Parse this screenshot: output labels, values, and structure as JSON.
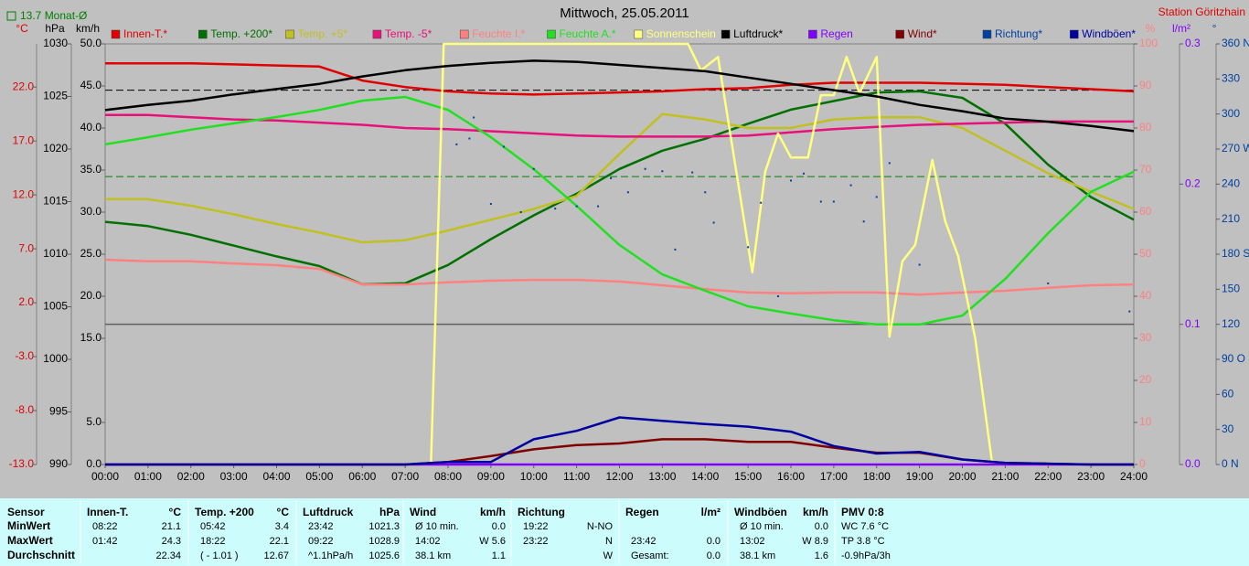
{
  "chart_data": {
    "type": "line",
    "title": "Mittwoch, 25.05.2011",
    "station": "Station Göritzhain",
    "month_avg_label": "13.7 Monat-Ø",
    "ref_lines": [
      {
        "value": 13.7,
        "axis": 0,
        "color": "#008000"
      },
      {
        "value": 1025.6,
        "axis": 1,
        "color": "#000000"
      }
    ],
    "xlim": [
      0,
      24
    ],
    "xticks": [
      {
        "value": 0,
        "label": "00:00"
      },
      {
        "value": 1,
        "label": "01:00"
      },
      {
        "value": 2,
        "label": "02:00"
      },
      {
        "value": 3,
        "label": "03:00"
      },
      {
        "value": 4,
        "label": "04:00"
      },
      {
        "value": 5,
        "label": "05:00"
      },
      {
        "value": 6,
        "label": "06:00"
      },
      {
        "value": 7,
        "label": "07:00"
      },
      {
        "value": 8,
        "label": "08:00"
      },
      {
        "value": 9,
        "label": "09:00"
      },
      {
        "value": 10,
        "label": "10:00"
      },
      {
        "value": 11,
        "label": "11:00"
      },
      {
        "value": 12,
        "label": "12:00"
      },
      {
        "value": 13,
        "label": "13:00"
      },
      {
        "value": 14,
        "label": "14:00"
      },
      {
        "value": 15,
        "label": "15:00"
      },
      {
        "value": 16,
        "label": "16:00"
      },
      {
        "value": 17,
        "label": "17:00"
      },
      {
        "value": 18,
        "label": "18:00"
      },
      {
        "value": 19,
        "label": "19:00"
      },
      {
        "value": 20,
        "label": "20:00"
      },
      {
        "value": 21,
        "label": "21:00"
      },
      {
        "value": 22,
        "label": "22:00"
      },
      {
        "value": 23,
        "label": "23:00"
      },
      {
        "value": 24,
        "label": "24:00"
      }
    ],
    "x": [
      0,
      1,
      2,
      3,
      4,
      5,
      6,
      7,
      8,
      9,
      10,
      11,
      12,
      13,
      14,
      15,
      16,
      17,
      18,
      19,
      20,
      21,
      22,
      23,
      24
    ],
    "axes": [
      {
        "label": "°C",
        "color": "#e00000",
        "lim": [
          -13,
          26
        ],
        "ticks": [
          {
            "value": 22,
            "label": "22.0"
          },
          {
            "value": 17,
            "label": "17.0"
          },
          {
            "value": 12,
            "label": "12.0"
          },
          {
            "value": 7,
            "label": "7.0"
          },
          {
            "value": 2,
            "label": "2.0"
          },
          {
            "value": -3,
            "label": "-3.0"
          },
          {
            "value": -8,
            "label": "-8.0"
          },
          {
            "value": -13,
            "label": "-13.0"
          }
        ]
      },
      {
        "label": "hPa",
        "color": "#000000",
        "lim": [
          990,
          1030
        ],
        "ticks": [
          1030,
          1025,
          1020,
          1015,
          1010,
          1005,
          1000,
          995,
          990
        ]
      },
      {
        "label": "km/h",
        "color": "#000000",
        "lim": [
          0,
          50
        ],
        "ticks": [
          {
            "value": 50,
            "label": "50.0"
          },
          {
            "value": 45,
            "label": "45.0"
          },
          {
            "value": 40,
            "label": "40.0"
          },
          {
            "value": 35,
            "label": "35.0"
          },
          {
            "value": 30,
            "label": "30.0"
          },
          {
            "value": 25,
            "label": "25.0"
          },
          {
            "value": 20,
            "label": "20.0"
          },
          {
            "value": 15,
            "label": "15.0"
          },
          {
            "value": 5,
            "label": "5.0"
          },
          {
            "value": 0,
            "label": "0.0"
          }
        ]
      },
      {
        "label": "%",
        "color": "#ff8080",
        "lim": [
          0,
          100
        ],
        "ticks": [
          100,
          90,
          80,
          70,
          60,
          50,
          40,
          30,
          20,
          10,
          0
        ]
      },
      {
        "label": "l/m²",
        "color": "#8000ff",
        "lim": [
          0,
          0.3
        ],
        "ticks": [
          0.3,
          0.2,
          0.1,
          {
            "value": 0,
            "label": "0.0"
          }
        ]
      },
      {
        "label": "°",
        "color": "#0040a0",
        "lim": [
          0,
          360
        ],
        "ticks": [
          {
            "value": 360,
            "label": "360 N"
          },
          330,
          300,
          {
            "value": 270,
            "label": "270 W"
          },
          240,
          210,
          {
            "value": 180,
            "label": "180 S"
          },
          150,
          120,
          {
            "value": 90,
            "label": "90 O"
          },
          60,
          30,
          {
            "value": 0,
            "label": "0 N"
          }
        ]
      }
    ],
    "series": [
      {
        "name": "Innen-T.*",
        "color": "#e00000",
        "axis": 0,
        "values": [
          24.2,
          24.2,
          24.2,
          24.1,
          24.0,
          23.9,
          22.6,
          22.0,
          21.6,
          21.4,
          21.3,
          21.4,
          21.5,
          21.6,
          21.8,
          21.9,
          22.2,
          22.4,
          22.4,
          22.4,
          22.3,
          22.2,
          22.0,
          21.8,
          21.6
        ]
      },
      {
        "name": "Temp. +200*",
        "color": "#007000",
        "axis": 0,
        "values": [
          9.5,
          9.1,
          8.3,
          7.3,
          6.3,
          5.4,
          3.7,
          3.8,
          5.5,
          7.9,
          10.1,
          12.1,
          14.4,
          16.1,
          17.2,
          18.6,
          19.9,
          20.7,
          21.5,
          21.6,
          21.0,
          18.6,
          14.8,
          11.8,
          9.7
        ]
      },
      {
        "name": "Temp. +5*",
        "color": "#c0c020",
        "axis": 0,
        "values": [
          11.6,
          11.6,
          11.0,
          10.2,
          9.3,
          8.5,
          7.6,
          7.8,
          8.7,
          9.7,
          10.7,
          11.9,
          15.8,
          19.5,
          19.0,
          18.2,
          18.2,
          19.0,
          19.2,
          19.2,
          18.2,
          16.1,
          14.0,
          12.3,
          10.7
        ]
      },
      {
        "name": "Temp. -5*",
        "color": "#e8107a",
        "axis": 0,
        "values": [
          19.4,
          19.4,
          19.2,
          19.0,
          18.9,
          18.7,
          18.5,
          18.2,
          18.1,
          17.9,
          17.7,
          17.5,
          17.4,
          17.4,
          17.4,
          17.5,
          17.8,
          18.1,
          18.3,
          18.5,
          18.6,
          18.7,
          18.8,
          18.8,
          18.8
        ]
      },
      {
        "name": "Feuchte I.*",
        "color": "#ff8080",
        "axis": 3,
        "values": [
          48.7,
          48.3,
          48.3,
          47.8,
          47.4,
          46.5,
          42.8,
          42.8,
          43.3,
          43.7,
          43.9,
          43.9,
          43.5,
          42.6,
          41.7,
          40.9,
          40.7,
          40.9,
          40.9,
          40.4,
          40.9,
          41.3,
          42.0,
          42.6,
          42.8
        ]
      },
      {
        "name": "Feuchte A.*",
        "color": "#20e020",
        "axis": 3,
        "values": [
          76.1,
          77.8,
          79.6,
          81.1,
          82.6,
          84.3,
          86.5,
          87.4,
          84.3,
          77.8,
          70.2,
          61.5,
          52.2,
          45.2,
          41.3,
          37.6,
          35.9,
          34.3,
          33.3,
          33.3,
          35.4,
          44.1,
          55.0,
          64.8,
          69.6
        ]
      },
      {
        "name": "Sonnenschein",
        "color": "#ffff80",
        "axis": 3,
        "x": [
          0,
          7.6,
          7.9,
          13.6,
          13.9,
          14.3,
          15.1,
          15.4,
          15.7,
          16.0,
          16.4,
          16.7,
          17.0,
          17.3,
          17.6,
          18.0,
          18.3,
          18.6,
          18.9,
          19.3,
          19.6,
          19.9,
          20.3,
          20.7,
          24
        ],
        "values": [
          0,
          0,
          100,
          100,
          93.7,
          96.9,
          45.7,
          69.6,
          78.7,
          73.0,
          73.0,
          87.8,
          87.8,
          96.9,
          88.3,
          96.9,
          30.4,
          48.3,
          52.2,
          72.4,
          57.8,
          49.6,
          30.0,
          0,
          0
        ]
      },
      {
        "name": "Luftdruck*",
        "color": "#000000",
        "axis": 1,
        "values": [
          1023.7,
          1024.2,
          1024.6,
          1025.2,
          1025.7,
          1026.2,
          1026.9,
          1027.5,
          1027.9,
          1028.2,
          1028.4,
          1028.3,
          1028.0,
          1027.7,
          1027.4,
          1026.8,
          1026.2,
          1025.6,
          1025.0,
          1024.2,
          1023.6,
          1022.9,
          1022.6,
          1022.2,
          1021.7
        ]
      },
      {
        "name": "Regen",
        "color": "#8000ff",
        "axis": 4,
        "values": [
          0,
          0,
          0,
          0,
          0,
          0,
          0,
          0,
          0,
          0,
          0,
          0,
          0,
          0,
          0,
          0,
          0,
          0,
          0,
          0,
          0,
          0,
          0,
          0,
          0
        ]
      },
      {
        "name": "Wind*",
        "color": "#800000",
        "axis": 2,
        "values": [
          0,
          0,
          0,
          0,
          0,
          0,
          0,
          0,
          0.3,
          1.0,
          1.8,
          2.3,
          2.5,
          3.0,
          3.0,
          2.7,
          2.7,
          2.0,
          1.4,
          1.4,
          0.6,
          0.2,
          0.1,
          0,
          0
        ]
      },
      {
        "name": "Richtung*",
        "color": "#0040a0",
        "axis": 5,
        "marker": "dot",
        "x": [
          8.2,
          8.5,
          8.6,
          9.0,
          9.3,
          9.7,
          10.0,
          10.5,
          11.0,
          11.5,
          11.8,
          12.2,
          12.6,
          13.0,
          13.3,
          13.7,
          14.0,
          14.2,
          15.0,
          15.3,
          15.7,
          16.0,
          16.3,
          16.7,
          17.0,
          17.4,
          17.7,
          18.0,
          18.3,
          19.0,
          22.0,
          23.9
        ],
        "values": [
          274,
          279,
          297,
          223,
          272,
          216,
          253,
          219,
          221,
          221,
          245,
          233,
          253,
          251,
          184,
          250,
          233,
          207,
          186,
          224,
          144,
          243,
          249,
          225,
          225,
          239,
          208,
          229,
          258,
          171,
          155,
          131
        ]
      },
      {
        "name": "Windböen*",
        "color": "#0000a0",
        "axis": 2,
        "values": [
          0,
          0,
          0,
          0,
          0,
          0,
          0,
          0,
          0.3,
          0.3,
          3.0,
          4.0,
          5.6,
          5.2,
          4.8,
          4.5,
          3.9,
          2.2,
          1.3,
          1.5,
          0.6,
          0.2,
          0.1,
          0,
          0
        ]
      }
    ]
  },
  "table": {
    "sensor": "Sensor",
    "row_labels": [
      "MinWert",
      "MaxWert",
      "Durchschnitt"
    ],
    "columns": [
      {
        "title": "Innen-T.",
        "unit": "°C",
        "rows": [
          [
            "08:22",
            "21.1"
          ],
          [
            "01:42",
            "24.3"
          ],
          [
            null,
            "22.34"
          ]
        ]
      },
      {
        "title": "Temp. +200",
        "unit": "°C",
        "rows": [
          [
            "05:42",
            "3.4"
          ],
          [
            "18:22",
            "22.1"
          ],
          [
            "( - 1.01 )",
            "12.67"
          ]
        ]
      },
      {
        "title": "Luftdruck",
        "unit": "hPa",
        "rows": [
          [
            "23:42",
            "1021.3"
          ],
          [
            "09:22",
            "1028.9"
          ],
          [
            "^1.1hPa/h",
            "1025.6"
          ]
        ]
      },
      {
        "title": "Wind",
        "unit": "km/h",
        "rows": [
          [
            "Ø 10 min.",
            "0.0"
          ],
          [
            "14:02",
            "W 5.6"
          ],
          [
            "38.1 km",
            "1.1"
          ]
        ]
      },
      {
        "title": "Richtung",
        "unit": null,
        "rows": [
          [
            "19:22",
            "N-NO"
          ],
          [
            "23:22",
            "N"
          ],
          [
            null,
            "W"
          ]
        ]
      },
      {
        "title": "Regen",
        "unit": "l/m²",
        "rows": [
          [
            null,
            null
          ],
          [
            "23:42",
            "0.0"
          ],
          [
            "Gesamt:",
            "0.0"
          ]
        ]
      },
      {
        "title": "Windböen",
        "unit": "km/h",
        "rows": [
          [
            "Ø 10 min.",
            "0.0"
          ],
          [
            "13:02",
            "W 8.9"
          ],
          [
            "38.1 km",
            "1.6"
          ]
        ]
      },
      {
        "title": "PMV 0:8",
        "unit": null,
        "rows": [
          [
            "WC 7.6 °C"
          ],
          [
            "TP 3.8 °C"
          ],
          [
            "-0.9hPa/3h"
          ]
        ]
      }
    ]
  }
}
